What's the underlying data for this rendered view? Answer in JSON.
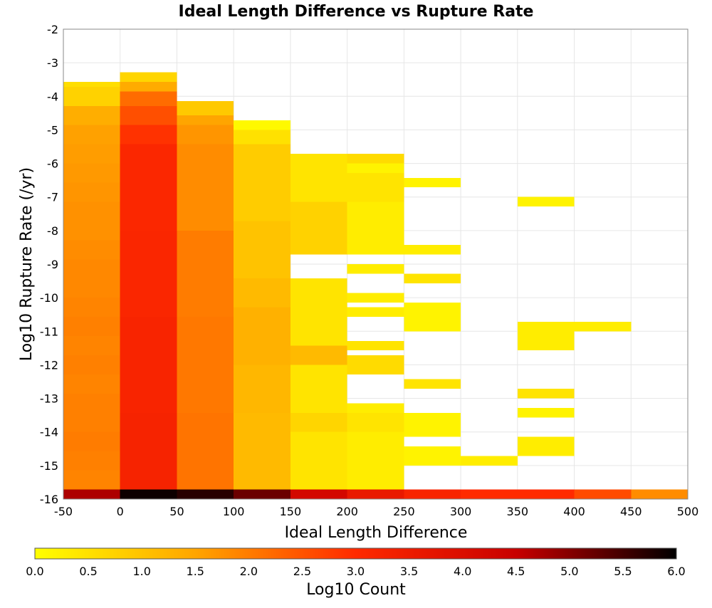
{
  "chart_data": {
    "type": "heatmap",
    "title": "Ideal Length Difference vs Rupture Rate",
    "xlabel": "Ideal Length Difference",
    "ylabel": "Log10 Rupture Rate (/yr)",
    "xlim": [
      -50,
      500
    ],
    "ylim": [
      -16,
      -2
    ],
    "x_ticks": [
      "-50",
      "0",
      "50",
      "100",
      "150",
      "200",
      "250",
      "300",
      "350",
      "400",
      "450",
      "500"
    ],
    "y_ticks": [
      "-2",
      "-3",
      "-4",
      "-5",
      "-6",
      "-7",
      "-8",
      "-9",
      "-10",
      "-11",
      "-12",
      "-13",
      "-14",
      "-15",
      "-16"
    ],
    "x_bin_width": 50,
    "y_bin_height": 0.2857,
    "grid": true,
    "color_scale": {
      "label": "Log10 Count",
      "range": [
        0.0,
        6.0
      ],
      "ticks": [
        "0.0",
        "0.5",
        "1.0",
        "1.5",
        "2.0",
        "2.5",
        "3.0",
        "3.5",
        "4.0",
        "4.5",
        "5.0",
        "5.5",
        "6.0"
      ],
      "stops": [
        "#ffff00",
        "#ffa500",
        "#ff2a00",
        "#c80000",
        "#000000"
      ]
    },
    "series": [
      {
        "x": -50,
        "bins": [
          {
            "y": [
              -16.0,
              -15.714
            ],
            "count": 4.7
          },
          {
            "y": [
              -15.714,
              -15.143
            ],
            "count": 1.9
          },
          {
            "y": [
              -15.143,
              -14.571
            ],
            "count": 1.95
          },
          {
            "y": [
              -14.571,
              -14.0
            ],
            "count": 2.0
          },
          {
            "y": [
              -14.0,
              -13.429
            ],
            "count": 1.95
          },
          {
            "y": [
              -13.429,
              -12.857
            ],
            "count": 1.95
          },
          {
            "y": [
              -12.857,
              -12.286
            ],
            "count": 1.9
          },
          {
            "y": [
              -12.286,
              -11.714
            ],
            "count": 1.95
          },
          {
            "y": [
              -11.714,
              -11.143
            ],
            "count": 1.9
          },
          {
            "y": [
              -11.143,
              -10.571
            ],
            "count": 1.95
          },
          {
            "y": [
              -10.571,
              -10.0
            ],
            "count": 1.9
          },
          {
            "y": [
              -10.0,
              -9.429
            ],
            "count": 1.85
          },
          {
            "y": [
              -9.429,
              -8.857
            ],
            "count": 1.85
          },
          {
            "y": [
              -8.857,
              -8.286
            ],
            "count": 1.8
          },
          {
            "y": [
              -8.286,
              -7.714
            ],
            "count": 1.75
          },
          {
            "y": [
              -7.714,
              -7.143
            ],
            "count": 1.75
          },
          {
            "y": [
              -7.143,
              -6.571
            ],
            "count": 1.7
          },
          {
            "y": [
              -6.571,
              -6.0
            ],
            "count": 1.65
          },
          {
            "y": [
              -6.0,
              -5.429
            ],
            "count": 1.6
          },
          {
            "y": [
              -5.429,
              -4.857
            ],
            "count": 1.55
          },
          {
            "y": [
              -4.857,
              -4.286
            ],
            "count": 1.35
          },
          {
            "y": [
              -4.286,
              -3.714
            ],
            "count": 0.75
          },
          {
            "y": [
              -3.714,
              -3.571
            ],
            "count": 0.55
          }
        ]
      },
      {
        "x": 0,
        "bins": [
          {
            "y": [
              -16.0,
              -15.714
            ],
            "count": 5.9
          },
          {
            "y": [
              -15.714,
              -13.429
            ],
            "count": 3.25
          },
          {
            "y": [
              -13.429,
              -10.571
            ],
            "count": 3.2
          },
          {
            "y": [
              -10.571,
              -8.0
            ],
            "count": 3.15
          },
          {
            "y": [
              -8.0,
              -5.429
            ],
            "count": 3.1
          },
          {
            "y": [
              -5.429,
              -4.857
            ],
            "count": 2.9
          },
          {
            "y": [
              -4.857,
              -4.286
            ],
            "count": 2.55
          },
          {
            "y": [
              -4.286,
              -3.857
            ],
            "count": 2.2
          },
          {
            "y": [
              -3.857,
              -3.571
            ],
            "count": 1.4
          },
          {
            "y": [
              -3.571,
              -3.286
            ],
            "count": 0.7
          }
        ]
      },
      {
        "x": 50,
        "bins": [
          {
            "y": [
              -16.0,
              -15.714
            ],
            "count": 5.7
          },
          {
            "y": [
              -15.714,
              -13.429
            ],
            "count": 2.1
          },
          {
            "y": [
              -13.429,
              -10.571
            ],
            "count": 2.05
          },
          {
            "y": [
              -10.571,
              -8.0
            ],
            "count": 2.0
          },
          {
            "y": [
              -8.0,
              -5.429
            ],
            "count": 1.8
          },
          {
            "y": [
              -5.429,
              -4.857
            ],
            "count": 1.7
          },
          {
            "y": [
              -4.857,
              -4.571
            ],
            "count": 1.5
          },
          {
            "y": [
              -4.571,
              -4.143
            ],
            "count": 0.9
          }
        ]
      },
      {
        "x": 100,
        "bins": [
          {
            "y": [
              -16.0,
              -15.714
            ],
            "count": 5.2
          },
          {
            "y": [
              -15.714,
              -13.429
            ],
            "count": 1.15
          },
          {
            "y": [
              -13.429,
              -12.0
            ],
            "count": 1.2
          },
          {
            "y": [
              -12.0,
              -10.286
            ],
            "count": 1.3
          },
          {
            "y": [
              -10.286,
              -9.429
            ],
            "count": 1.15
          },
          {
            "y": [
              -9.429,
              -7.714
            ],
            "count": 1.0
          },
          {
            "y": [
              -7.714,
              -5.429
            ],
            "count": 0.85
          },
          {
            "y": [
              -5.429,
              -5.0
            ],
            "count": 0.5
          },
          {
            "y": [
              -5.0,
              -4.714
            ],
            "count": 0.1
          }
        ]
      },
      {
        "x": 150,
        "bins": [
          {
            "y": [
              -16.0,
              -15.714
            ],
            "count": 4.2
          },
          {
            "y": [
              -15.714,
              -14.0
            ],
            "count": 0.45
          },
          {
            "y": [
              -14.0,
              -13.429
            ],
            "count": 0.7
          },
          {
            "y": [
              -13.429,
              -12.0
            ],
            "count": 0.45
          },
          {
            "y": [
              -12.0,
              -11.429
            ],
            "count": 1.15
          },
          {
            "y": [
              -11.429,
              -9.429
            ],
            "count": 0.45
          },
          {
            "y": [
              -8.714,
              -7.143
            ],
            "count": 0.75
          },
          {
            "y": [
              -7.143,
              -5.714
            ],
            "count": 0.45
          }
        ]
      },
      {
        "x": 200,
        "bins": [
          {
            "y": [
              -16.0,
              -15.714
            ],
            "count": 3.6
          },
          {
            "y": [
              -15.714,
              -14.0
            ],
            "count": 0.3
          },
          {
            "y": [
              -14.0,
              -13.429
            ],
            "count": 0.45
          },
          {
            "y": [
              -13.429,
              -13.143
            ],
            "count": 0.3
          },
          {
            "y": [
              -12.286,
              -11.714
            ],
            "count": 0.6
          },
          {
            "y": [
              -11.571,
              -11.286
            ],
            "count": 0.45
          },
          {
            "y": [
              -10.571,
              -10.286
            ],
            "count": 0.3
          },
          {
            "y": [
              -10.143,
              -9.857
            ],
            "count": 0.3
          },
          {
            "y": [
              -9.286,
              -9.0
            ],
            "count": 0.3
          },
          {
            "y": [
              -8.714,
              -7.143
            ],
            "count": 0.3
          },
          {
            "y": [
              -7.143,
              -6.286
            ],
            "count": 0.45
          },
          {
            "y": [
              -6.286,
              -6.0
            ],
            "count": 0.2
          },
          {
            "y": [
              -6.0,
              -5.714
            ],
            "count": 0.6
          }
        ]
      },
      {
        "x": 250,
        "bins": [
          {
            "y": [
              -16.0,
              -15.714
            ],
            "count": 3.2
          },
          {
            "y": [
              -15.0,
              -14.429
            ],
            "count": 0.2
          },
          {
            "y": [
              -14.143,
              -13.429
            ],
            "count": 0.2
          },
          {
            "y": [
              -12.714,
              -12.429
            ],
            "count": 0.45
          },
          {
            "y": [
              -11.0,
              -10.143
            ],
            "count": 0.2
          },
          {
            "y": [
              -9.571,
              -9.286
            ],
            "count": 0.45
          },
          {
            "y": [
              -8.714,
              -8.429
            ],
            "count": 0.3
          },
          {
            "y": [
              -6.714,
              -6.429
            ],
            "count": 0.2
          }
        ]
      },
      {
        "x": 300,
        "bins": [
          {
            "y": [
              -16.0,
              -15.714
            ],
            "count": 3.0
          },
          {
            "y": [
              -15.0,
              -14.714
            ],
            "count": 0.3
          }
        ]
      },
      {
        "x": 350,
        "bins": [
          {
            "y": [
              -16.0,
              -15.714
            ],
            "count": 3.0
          },
          {
            "y": [
              -14.714,
              -14.143
            ],
            "count": 0.3
          },
          {
            "y": [
              -13.571,
              -13.286
            ],
            "count": 0.2
          },
          {
            "y": [
              -13.0,
              -12.714
            ],
            "count": 0.45
          },
          {
            "y": [
              -11.571,
              -10.714
            ],
            "count": 0.3
          },
          {
            "y": [
              -7.286,
              -7.0
            ],
            "count": 0.2
          }
        ]
      },
      {
        "x": 400,
        "bins": [
          {
            "y": [
              -16.0,
              -15.714
            ],
            "count": 2.6
          },
          {
            "y": [
              -11.0,
              -10.714
            ],
            "count": 0.3
          }
        ]
      },
      {
        "x": 450,
        "bins": [
          {
            "y": [
              -16.0,
              -15.714
            ],
            "count": 1.8
          }
        ]
      }
    ]
  }
}
